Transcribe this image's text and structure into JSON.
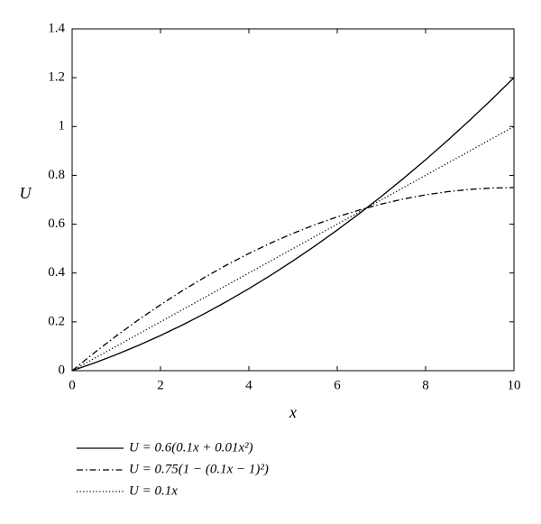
{
  "chart_data": {
    "type": "line",
    "xlabel": "x",
    "ylabel": "U",
    "x": [
      0,
      0.5,
      1,
      1.5,
      2,
      2.5,
      3,
      3.5,
      4,
      4.5,
      5,
      5.5,
      6,
      6.5,
      7,
      7.5,
      8,
      8.5,
      9,
      9.5,
      10
    ],
    "series": [
      {
        "name": "U = 0.6(0.1x + 0.01x²)",
        "color": "#000000",
        "dash": "solid",
        "values": [
          0,
          0.0315,
          0.066,
          0.1035,
          0.144,
          0.1875,
          0.234,
          0.2835,
          0.336,
          0.3915,
          0.45,
          0.5115,
          0.576,
          0.6435,
          0.714,
          0.7875,
          0.864,
          0.9435,
          1.026,
          1.1115,
          1.2
        ]
      },
      {
        "name": "U = 0.75(1 − (0.1x − 1)²)",
        "color": "#000000",
        "dash": "dashdot",
        "values": [
          0,
          0.073125,
          0.1425,
          0.208125,
          0.27,
          0.328125,
          0.3825,
          0.433125,
          0.48,
          0.523125,
          0.5625,
          0.598125,
          0.63,
          0.658125,
          0.6825,
          0.703125,
          0.72,
          0.733125,
          0.7425,
          0.748125,
          0.75
        ]
      },
      {
        "name": "U = 0.1x",
        "color": "#000000",
        "dash": "dotted",
        "values": [
          0,
          0.05,
          0.1,
          0.15,
          0.2,
          0.25,
          0.3,
          0.35,
          0.4,
          0.45,
          0.5,
          0.55,
          0.6,
          0.65,
          0.7,
          0.75,
          0.8,
          0.85,
          0.9,
          0.95,
          1
        ]
      }
    ],
    "xlim": [
      0,
      10
    ],
    "xticks": [
      0,
      2,
      4,
      6,
      8,
      10
    ],
    "ylim": [
      0,
      1.4
    ],
    "yticks": [
      0,
      0.2,
      0.4,
      0.6,
      0.8,
      1,
      1.2,
      1.4
    ],
    "grid": false,
    "legend": "bottom"
  }
}
